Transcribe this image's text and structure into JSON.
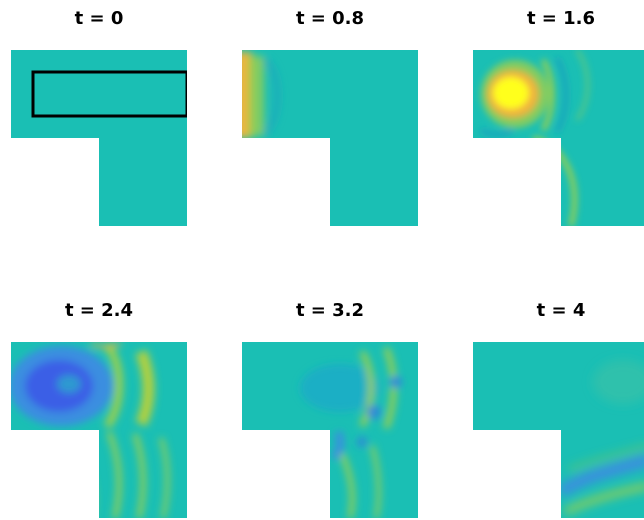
{
  "figure": {
    "panels": [
      {
        "title": "t = 0",
        "field": "initial-uniform-with-region-box"
      },
      {
        "title": "t = 0.8",
        "field": "left-edge-pulse"
      },
      {
        "title": "t = 1.6",
        "field": "hot-spot"
      },
      {
        "title": "t = 2.4",
        "field": "blue-basin-with-ripples"
      },
      {
        "title": "t = 3.2",
        "field": "fading-ripples"
      },
      {
        "title": "t = 4",
        "field": "near-uniform"
      }
    ],
    "colors": {
      "background": "#1abfb4",
      "hot": "#ffff1a",
      "warm": "#f0b43c",
      "green": "#9cd04c",
      "cool": "#3a8ee0",
      "deep": "#3a5fe6",
      "box_stroke": "#000000"
    }
  }
}
